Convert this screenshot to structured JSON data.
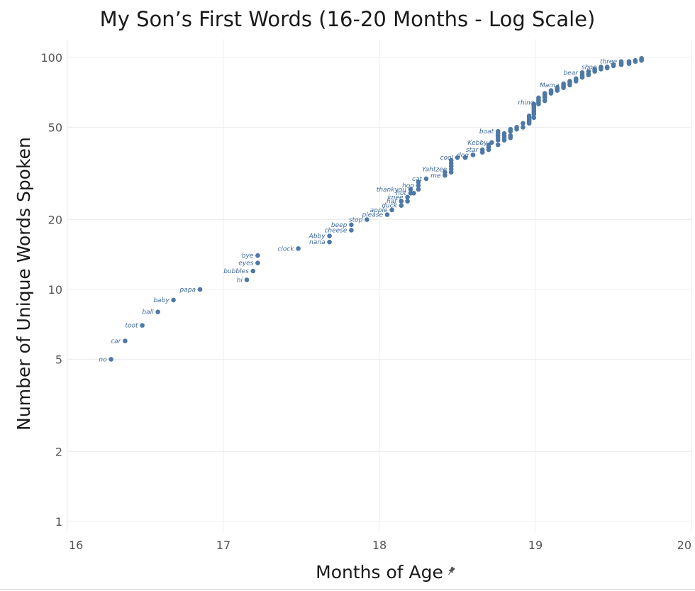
{
  "chart_data": {
    "type": "scatter",
    "title": "My Son’s First Words (16-20 Months - Log Scale)",
    "xlabel": "Months of Age",
    "ylabel": "Number of Unique Words Spoken",
    "xlim": [
      16,
      20
    ],
    "ylim": [
      0.9,
      120
    ],
    "y_scale": "log",
    "x_ticks": [
      16,
      17,
      18,
      19,
      20
    ],
    "y_ticks": [
      1,
      2,
      5,
      10,
      20,
      50,
      100
    ],
    "grid": true,
    "legend": "none",
    "colors": {
      "point": "#4e79a7",
      "label": "#3c6a9e",
      "grid": "#ececec"
    },
    "xlabel_icon": "pin-icon",
    "labeled_points": [
      {
        "x": 16.28,
        "y": 5,
        "label": "no"
      },
      {
        "x": 16.37,
        "y": 6,
        "label": "car"
      },
      {
        "x": 16.48,
        "y": 7,
        "label": "toot"
      },
      {
        "x": 16.58,
        "y": 8,
        "label": "ball"
      },
      {
        "x": 16.68,
        "y": 9,
        "label": "baby"
      },
      {
        "x": 16.85,
        "y": 10,
        "label": "papa"
      },
      {
        "x": 17.15,
        "y": 11,
        "label": "hi"
      },
      {
        "x": 17.19,
        "y": 12,
        "label": "bubbles"
      },
      {
        "x": 17.22,
        "y": 13,
        "label": "eyes"
      },
      {
        "x": 17.22,
        "y": 14,
        "label": "bye"
      },
      {
        "x": 17.48,
        "y": 15,
        "label": "clock"
      },
      {
        "x": 17.68,
        "y": 16,
        "label": "nana"
      },
      {
        "x": 17.68,
        "y": 17,
        "label": "Abby"
      },
      {
        "x": 17.82,
        "y": 18,
        "label": "cheese"
      },
      {
        "x": 17.82,
        "y": 19,
        "label": "beep"
      },
      {
        "x": 17.92,
        "y": 20,
        "label": "stop"
      },
      {
        "x": 18.05,
        "y": 21,
        "label": "please"
      },
      {
        "x": 18.08,
        "y": 22,
        "label": "apple"
      },
      {
        "x": 18.14,
        "y": 23,
        "label": "duck"
      },
      {
        "x": 18.14,
        "y": 24,
        "label": "hat"
      },
      {
        "x": 18.18,
        "y": 25,
        "label": "knee"
      },
      {
        "x": 18.2,
        "y": 26,
        "label": "hot"
      },
      {
        "x": 18.2,
        "y": 27,
        "label": "thankyou"
      },
      {
        "x": 18.25,
        "y": 28,
        "label": "hop"
      },
      {
        "x": 18.3,
        "y": 30,
        "label": "cat"
      },
      {
        "x": 18.42,
        "y": 31,
        "label": "me"
      },
      {
        "x": 18.46,
        "y": 33,
        "label": "Yahtzee"
      },
      {
        "x": 18.5,
        "y": 37,
        "label": "cool"
      },
      {
        "x": 18.6,
        "y": 38,
        "label": "dog"
      },
      {
        "x": 18.66,
        "y": 40,
        "label": "star"
      },
      {
        "x": 18.72,
        "y": 43,
        "label": "Kebby"
      },
      {
        "x": 18.76,
        "y": 48,
        "label": "boat"
      },
      {
        "x": 19.02,
        "y": 64,
        "label": "rhino"
      },
      {
        "x": 19.18,
        "y": 76,
        "label": "Mama"
      },
      {
        "x": 19.3,
        "y": 86,
        "label": "bear"
      },
      {
        "x": 19.42,
        "y": 91,
        "label": "shoe"
      },
      {
        "x": 19.55,
        "y": 96,
        "label": "three"
      }
    ],
    "unlabeled_points": [
      {
        "x": 18.18,
        "y": 24
      },
      {
        "x": 18.22,
        "y": 26
      },
      {
        "x": 18.25,
        "y": 27
      },
      {
        "x": 18.25,
        "y": 29
      },
      {
        "x": 18.42,
        "y": 32
      },
      {
        "x": 18.46,
        "y": 32
      },
      {
        "x": 18.46,
        "y": 34
      },
      {
        "x": 18.46,
        "y": 35
      },
      {
        "x": 18.46,
        "y": 36
      },
      {
        "x": 18.55,
        "y": 37
      },
      {
        "x": 18.6,
        "y": 38
      },
      {
        "x": 18.66,
        "y": 39
      },
      {
        "x": 18.7,
        "y": 40
      },
      {
        "x": 18.7,
        "y": 41
      },
      {
        "x": 18.7,
        "y": 42
      },
      {
        "x": 18.76,
        "y": 42
      },
      {
        "x": 18.76,
        "y": 44
      },
      {
        "x": 18.76,
        "y": 45
      },
      {
        "x": 18.76,
        "y": 46
      },
      {
        "x": 18.76,
        "y": 47
      },
      {
        "x": 18.8,
        "y": 44
      },
      {
        "x": 18.8,
        "y": 45
      },
      {
        "x": 18.8,
        "y": 46
      },
      {
        "x": 18.8,
        "y": 47
      },
      {
        "x": 18.84,
        "y": 45
      },
      {
        "x": 18.84,
        "y": 46
      },
      {
        "x": 18.84,
        "y": 48
      },
      {
        "x": 18.84,
        "y": 49
      },
      {
        "x": 18.88,
        "y": 49
      },
      {
        "x": 18.88,
        "y": 50
      },
      {
        "x": 18.92,
        "y": 50
      },
      {
        "x": 18.92,
        "y": 52
      },
      {
        "x": 18.96,
        "y": 52
      },
      {
        "x": 18.96,
        "y": 53
      },
      {
        "x": 18.96,
        "y": 54
      },
      {
        "x": 18.96,
        "y": 55
      },
      {
        "x": 18.96,
        "y": 56
      },
      {
        "x": 18.99,
        "y": 55
      },
      {
        "x": 18.99,
        "y": 57
      },
      {
        "x": 18.99,
        "y": 58
      },
      {
        "x": 18.99,
        "y": 59
      },
      {
        "x": 18.99,
        "y": 60
      },
      {
        "x": 18.99,
        "y": 61
      },
      {
        "x": 18.99,
        "y": 62
      },
      {
        "x": 18.99,
        "y": 63
      },
      {
        "x": 19.02,
        "y": 63
      },
      {
        "x": 19.02,
        "y": 65
      },
      {
        "x": 19.02,
        "y": 66
      },
      {
        "x": 19.02,
        "y": 67
      },
      {
        "x": 19.06,
        "y": 65
      },
      {
        "x": 19.06,
        "y": 67
      },
      {
        "x": 19.06,
        "y": 68
      },
      {
        "x": 19.06,
        "y": 69
      },
      {
        "x": 19.06,
        "y": 70
      },
      {
        "x": 19.1,
        "y": 70
      },
      {
        "x": 19.1,
        "y": 71
      },
      {
        "x": 19.1,
        "y": 72
      },
      {
        "x": 19.14,
        "y": 72
      },
      {
        "x": 19.14,
        "y": 73
      },
      {
        "x": 19.14,
        "y": 74
      },
      {
        "x": 19.18,
        "y": 74
      },
      {
        "x": 19.18,
        "y": 75
      },
      {
        "x": 19.18,
        "y": 77
      },
      {
        "x": 19.22,
        "y": 76
      },
      {
        "x": 19.22,
        "y": 78
      },
      {
        "x": 19.22,
        "y": 79
      },
      {
        "x": 19.26,
        "y": 79
      },
      {
        "x": 19.26,
        "y": 80
      },
      {
        "x": 19.26,
        "y": 81
      },
      {
        "x": 19.3,
        "y": 82
      },
      {
        "x": 19.3,
        "y": 83
      },
      {
        "x": 19.3,
        "y": 84
      },
      {
        "x": 19.34,
        "y": 84
      },
      {
        "x": 19.34,
        "y": 85
      },
      {
        "x": 19.34,
        "y": 87
      },
      {
        "x": 19.38,
        "y": 87
      },
      {
        "x": 19.38,
        "y": 88
      },
      {
        "x": 19.38,
        "y": 89
      },
      {
        "x": 19.42,
        "y": 89
      },
      {
        "x": 19.42,
        "y": 90
      },
      {
        "x": 19.46,
        "y": 90
      },
      {
        "x": 19.46,
        "y": 91
      },
      {
        "x": 19.5,
        "y": 92
      },
      {
        "x": 19.5,
        "y": 93
      },
      {
        "x": 19.55,
        "y": 93
      },
      {
        "x": 19.55,
        "y": 94
      },
      {
        "x": 19.55,
        "y": 95
      },
      {
        "x": 19.6,
        "y": 94
      },
      {
        "x": 19.6,
        "y": 95
      },
      {
        "x": 19.6,
        "y": 96
      },
      {
        "x": 19.64,
        "y": 96
      },
      {
        "x": 19.64,
        "y": 97
      },
      {
        "x": 19.68,
        "y": 97
      },
      {
        "x": 19.68,
        "y": 98
      },
      {
        "x": 19.68,
        "y": 99
      }
    ]
  }
}
